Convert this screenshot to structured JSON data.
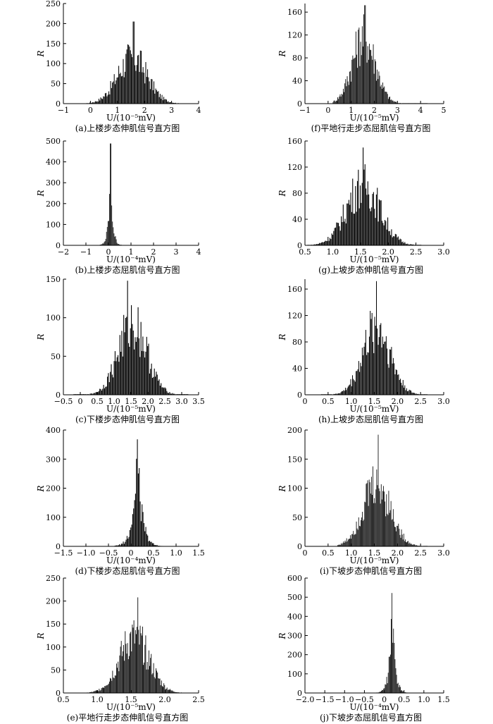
{
  "chart_data": [
    {
      "id": "a",
      "type": "bar",
      "caption": "(a)上楼步态伸肌信号直方图",
      "xlabel": "U/(10⁻⁵mV)",
      "ylabel": "R",
      "xlim": [
        -1,
        4
      ],
      "ylim": [
        0,
        250
      ],
      "xticks": [
        -1,
        0,
        1,
        2,
        3,
        4
      ],
      "yticks": [
        0,
        50,
        100,
        150,
        200,
        250
      ],
      "dist": {
        "type": "normal",
        "center": 1.55,
        "spread": 0.55,
        "peak": 125
      },
      "max": {
        "x": 1.6,
        "y": 205
      },
      "range": [
        -0.4,
        3.6
      ]
    },
    {
      "id": "f",
      "type": "bar",
      "caption": "(f)平地行走步态屈肌信号直方图",
      "xlabel": "U/(10⁻⁵mV)",
      "ylabel": "R",
      "xlim": [
        -1,
        5
      ],
      "ylim": [
        0,
        175
      ],
      "xticks": [
        -1,
        0,
        1,
        2,
        3,
        4,
        5
      ],
      "yticks": [
        0,
        40,
        80,
        120,
        160
      ],
      "dist": {
        "type": "normal",
        "center": 1.55,
        "spread": 0.5,
        "peak": 125
      },
      "max": {
        "x": 1.6,
        "y": 172
      },
      "range": [
        0.2,
        4.3
      ]
    },
    {
      "id": "b",
      "type": "bar",
      "caption": "(b)上楼步态屈肌信号直方图",
      "xlabel": "U/(10⁻⁴mV)",
      "ylabel": "R",
      "xlim": [
        -2,
        4
      ],
      "ylim": [
        0,
        500
      ],
      "xticks": [
        -2,
        -1,
        0,
        1,
        2,
        3,
        4
      ],
      "yticks": [
        0,
        100,
        200,
        300,
        400,
        500
      ],
      "dist": {
        "type": "laplace",
        "center": 0.1,
        "spread": 0.09,
        "peak": 400
      },
      "max": {
        "x": 0.1,
        "y": 488
      },
      "range": [
        -1.6,
        2.4
      ]
    },
    {
      "id": "g",
      "type": "bar",
      "caption": "(g)上坡步态伸肌信号直方图",
      "xlabel": "U/(10⁻⁵mV)",
      "ylabel": "R",
      "xlim": [
        0.5,
        3.0
      ],
      "ylim": [
        0,
        160
      ],
      "xticks": [
        0.5,
        1.0,
        1.5,
        2.0,
        2.5,
        3.0
      ],
      "yticks": [
        0,
        40,
        80,
        120,
        160
      ],
      "dist": {
        "type": "normal",
        "center": 1.55,
        "spread": 0.3,
        "peak": 100
      },
      "max": {
        "x": 1.55,
        "y": 150
      },
      "range": [
        0.55,
        2.6
      ]
    },
    {
      "id": "c",
      "type": "bar",
      "caption": "(c)下楼步态伸肌信号直方图",
      "xlabel": "U/(10⁻⁵mV)",
      "ylabel": "R",
      "xlim": [
        -0.5,
        3.5
      ],
      "ylim": [
        0,
        150
      ],
      "xticks": [
        -0.5,
        0,
        0.5,
        1.0,
        1.5,
        2.0,
        2.5,
        3.0,
        3.5
      ],
      "yticks": [
        0,
        50,
        100,
        150
      ],
      "dist": {
        "type": "normal",
        "center": 1.55,
        "spread": 0.42,
        "peak": 100
      },
      "max": {
        "x": 1.4,
        "y": 148
      },
      "range": [
        -0.2,
        3.2
      ]
    },
    {
      "id": "h",
      "type": "bar",
      "caption": "(h)上坡步态屈肌信号直方图",
      "xlabel": "U/(10⁻⁵mV)",
      "ylabel": "R",
      "xlim": [
        0,
        3.0
      ],
      "ylim": [
        0,
        175
      ],
      "xticks": [
        0,
        0.5,
        1.0,
        1.5,
        2.0,
        2.5,
        3.0
      ],
      "yticks": [
        0,
        40,
        80,
        120,
        160
      ],
      "dist": {
        "type": "normal",
        "center": 1.55,
        "spread": 0.3,
        "peak": 110
      },
      "max": {
        "x": 1.55,
        "y": 172
      },
      "range": [
        0.35,
        2.65
      ]
    },
    {
      "id": "d",
      "type": "bar",
      "caption": "(d)下楼步态屈肌信号直方图",
      "xlabel": "U/(10⁻⁴mV)",
      "ylabel": "R",
      "xlim": [
        -1.5,
        1.5
      ],
      "ylim": [
        0,
        400
      ],
      "xticks": [
        -1.5,
        -1.0,
        -0.5,
        0,
        0.5,
        1.0,
        1.5
      ],
      "yticks": [
        0,
        100,
        200,
        300,
        400
      ],
      "dist": {
        "type": "laplace",
        "center": 0.15,
        "spread": 0.1,
        "peak": 320
      },
      "max": {
        "x": 0.15,
        "y": 368
      },
      "range": [
        -1.2,
        1.3
      ]
    },
    {
      "id": "i",
      "type": "bar",
      "caption": "(i)下坡步态伸肌信号直方图",
      "xlabel": "U/(10⁻⁵mV)",
      "ylabel": "R",
      "xlim": [
        0,
        3.0
      ],
      "ylim": [
        0,
        200
      ],
      "xticks": [
        0,
        0.5,
        1.0,
        1.5,
        2.0,
        2.5,
        3.0
      ],
      "yticks": [
        0,
        50,
        100,
        150,
        200
      ],
      "dist": {
        "type": "normal",
        "center": 1.55,
        "spread": 0.3,
        "peak": 115
      },
      "max": {
        "x": 1.58,
        "y": 192
      },
      "range": [
        0.7,
        2.65
      ]
    },
    {
      "id": "e",
      "type": "bar",
      "caption": "(e)平地行走步态伸肌信号直方图",
      "xlabel": "U/(10⁻⁵mV)",
      "ylabel": "R",
      "xlim": [
        0.5,
        2.5
      ],
      "ylim": [
        0,
        250
      ],
      "xticks": [
        0.5,
        1.0,
        1.5,
        2.0,
        2.5
      ],
      "yticks": [
        0,
        50,
        100,
        150,
        200,
        250
      ],
      "dist": {
        "type": "normal",
        "center": 1.55,
        "spread": 0.22,
        "peak": 130
      },
      "max": {
        "x": 1.6,
        "y": 208
      },
      "range": [
        0.85,
        2.25
      ]
    },
    {
      "id": "j",
      "type": "bar",
      "caption": "(j)下坡步态屈肌信号直方图",
      "xlabel": "U/(10⁻⁴mV)",
      "ylabel": "R",
      "xlim": [
        -2.0,
        1.5
      ],
      "ylim": [
        0,
        600
      ],
      "xticks": [
        -2.0,
        -1.5,
        -1.0,
        -0.5,
        0,
        0.5,
        1.0,
        1.5
      ],
      "yticks": [
        0,
        100,
        200,
        300,
        400,
        500,
        600
      ],
      "dist": {
        "type": "laplace",
        "center": 0.2,
        "spread": 0.07,
        "peak": 480
      },
      "max": {
        "x": 0.2,
        "y": 522
      },
      "range": [
        -1.0,
        1.3
      ]
    }
  ]
}
